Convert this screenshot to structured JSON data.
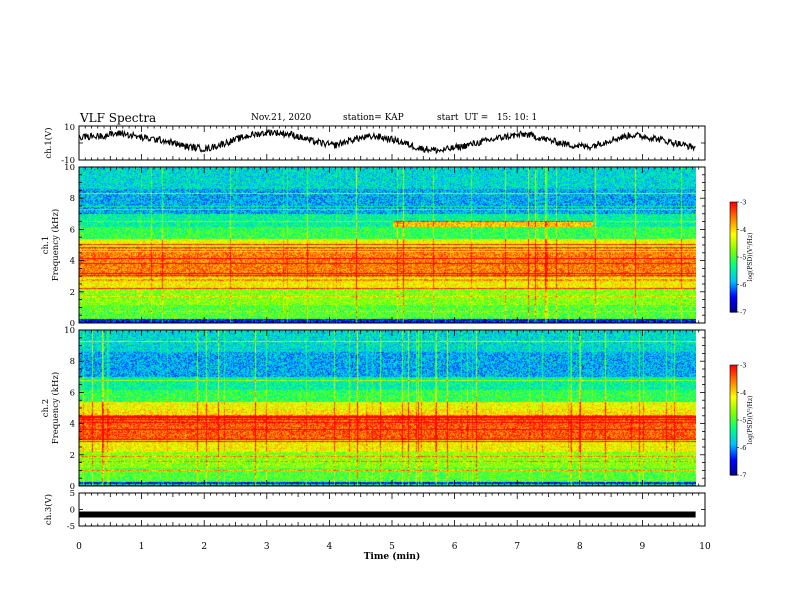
{
  "header": {
    "title": "VLF Spectra",
    "date": "Nov.21, 2020",
    "station": "station= KAP",
    "start": "start  UT =   15: 10: 1"
  },
  "chart_data": [
    {
      "type": "line",
      "panel": "ch.1 waveform",
      "ylabel": "ch.1(V)",
      "ylim": [
        -10,
        10
      ],
      "yticks": [
        "10",
        "-10"
      ],
      "x_range_min": [
        0,
        9.85
      ],
      "description_values": "noisy waveform oscillating between about -5 and 8 V",
      "series": [
        {
          "values": [
            3.5,
            4.2,
            5.8,
            3.0,
            1.5,
            -2.0,
            -3.5,
            0.5,
            4.5,
            6.5,
            5.0,
            1.0,
            -1.5,
            2.5,
            4.0,
            1.2,
            -3.0,
            -4.5,
            -2.0,
            0.8,
            3.6,
            5.2,
            2.0,
            -1.0,
            -2.2,
            1.8,
            4.8,
            3.0,
            0.2,
            -2.8
          ]
        }
      ]
    },
    {
      "type": "heatmap",
      "panel": "ch.1 spectrogram",
      "ylabel": "ch.1\nFrequency (kHz)",
      "xlim": [
        0,
        10
      ],
      "ylim": [
        0,
        10
      ],
      "yticks": [
        0,
        2,
        4,
        6,
        8,
        10
      ],
      "colorbar": {
        "label": "log(PSD)(V²/Hz)",
        "range": [
          -7,
          -3
        ],
        "ticks": [
          "-3",
          "-4",
          "-5",
          "-6",
          "-7"
        ]
      }
    },
    {
      "type": "heatmap",
      "panel": "ch.2 spectrogram",
      "ylabel": "ch.2\nFrequency (kHz)",
      "xlim": [
        0,
        10
      ],
      "ylim": [
        0,
        10
      ],
      "yticks": [
        0,
        2,
        4,
        6,
        8,
        10
      ],
      "colorbar": {
        "label": "log(PSD)(V²/Hz)",
        "range": [
          -7,
          -3
        ],
        "ticks": [
          "-3",
          "-4",
          "-5",
          "-6",
          "-7"
        ]
      }
    },
    {
      "type": "line",
      "panel": "ch.3 waveform",
      "ylabel": "ch.3(V)",
      "ylim": [
        -5,
        5
      ],
      "yticks": [
        "5",
        "0",
        "-5"
      ],
      "series": [
        {
          "values": [
            -1.5,
            -1.5
          ]
        }
      ]
    }
  ],
  "xaxis": {
    "label": "Time  (min)",
    "ticks": [
      "0",
      "1",
      "2",
      "3",
      "4",
      "5",
      "6",
      "7",
      "8",
      "9",
      "10"
    ]
  },
  "colors": {
    "ramp": [
      "#000080",
      "#0000ff",
      "#00c0ff",
      "#00ff80",
      "#80ff00",
      "#ffff00",
      "#ff8000",
      "#ff0000",
      "#ffffff"
    ],
    "axis": "#000000"
  }
}
